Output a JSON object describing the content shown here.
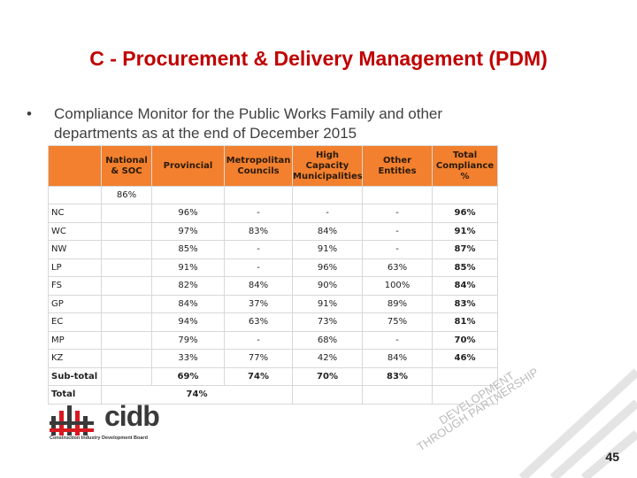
{
  "title": "C - Procurement & Delivery Management (PDM)",
  "bullet": {
    "symbol": "•",
    "text": "Compliance Monitor for the Public Works Family and other departments as at the end of December 2015"
  },
  "table": {
    "headers": [
      "",
      "National & SOC",
      "Provincial",
      "Metropolitan Councils",
      "High Capacity Municipalities",
      "Other Entities",
      "Total Compliance %"
    ],
    "national_soc_value": "86%",
    "rows": [
      {
        "prov": "NC",
        "provincial": "96%",
        "metro": "-",
        "high_cap": "-",
        "other": "-",
        "total": "96%"
      },
      {
        "prov": "WC",
        "provincial": "97%",
        "metro": "83%",
        "high_cap": "84%",
        "other": "-",
        "total": "91%"
      },
      {
        "prov": "NW",
        "provincial": "85%",
        "metro": "-",
        "high_cap": "91%",
        "other": "-",
        "total": "87%"
      },
      {
        "prov": "LP",
        "provincial": "91%",
        "metro": "-",
        "high_cap": "96%",
        "other": "63%",
        "total": "85%"
      },
      {
        "prov": "FS",
        "provincial": "82%",
        "metro": "84%",
        "high_cap": "90%",
        "other": "100%",
        "total": "84%"
      },
      {
        "prov": "GP",
        "provincial": "84%",
        "metro": "37%",
        "high_cap": "91%",
        "other": "89%",
        "total": "83%"
      },
      {
        "prov": "EC",
        "provincial": "94%",
        "metro": "63%",
        "high_cap": "73%",
        "other": "75%",
        "total": "81%"
      },
      {
        "prov": "MP",
        "provincial": "79%",
        "metro": "-",
        "high_cap": "68%",
        "other": "-",
        "total": "70%"
      },
      {
        "prov": "KZ",
        "provincial": "33%",
        "metro": "77%",
        "high_cap": "42%",
        "other": "84%",
        "total": "46%"
      }
    ],
    "subtotal": {
      "label": "Sub-total",
      "provincial": "69%",
      "metro": "74%",
      "high_cap": "70%",
      "other": "83%"
    },
    "total": {
      "label": "Total",
      "value": "74%"
    }
  },
  "logo": {
    "text": "cidb",
    "tagline": "Construction Industry Development Board"
  },
  "watermark": {
    "line1": "DEVELOPMENT",
    "line2": "THROUGH PARTNERSHIP"
  },
  "page_number": "45",
  "colors": {
    "title": "#c00000",
    "header_bg": "#f2802e",
    "logo_red": "#d71920",
    "logo_dark": "#3a3a3a"
  }
}
